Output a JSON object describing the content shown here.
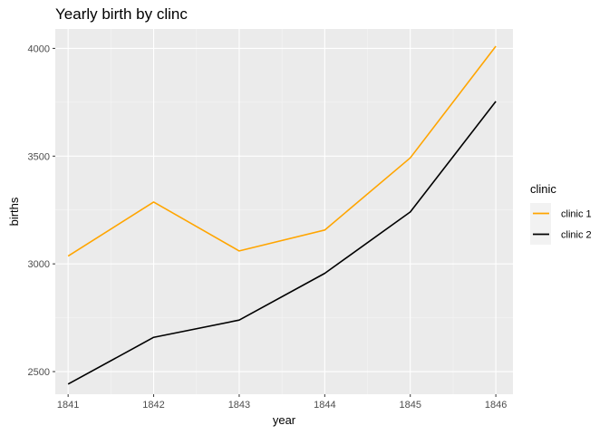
{
  "chart_data": {
    "type": "line",
    "title": "Yearly birth by clinc",
    "xlabel": "year",
    "ylabel": "births",
    "x": [
      1841,
      1842,
      1843,
      1844,
      1845,
      1846
    ],
    "x_tick_labels": [
      "1841",
      "1842",
      "1843",
      "1844",
      "1845",
      "1846"
    ],
    "y_ticks": [
      2500,
      3000,
      3500,
      4000
    ],
    "y_tick_labels": [
      "2500",
      "3000",
      "3500",
      "4000"
    ],
    "ylim": [
      2395,
      4090
    ],
    "xlim": [
      1840.85,
      1846.2
    ],
    "grid": true,
    "legend_title": "clinic",
    "legend_position": "right",
    "series": [
      {
        "name": "clinic 1",
        "color": "#FFA500",
        "values": [
          3036,
          3287,
          3060,
          3157,
          3492,
          4010
        ]
      },
      {
        "name": "clinic 2",
        "color": "#000000",
        "values": [
          2442,
          2659,
          2739,
          2956,
          3241,
          3754
        ]
      }
    ]
  }
}
